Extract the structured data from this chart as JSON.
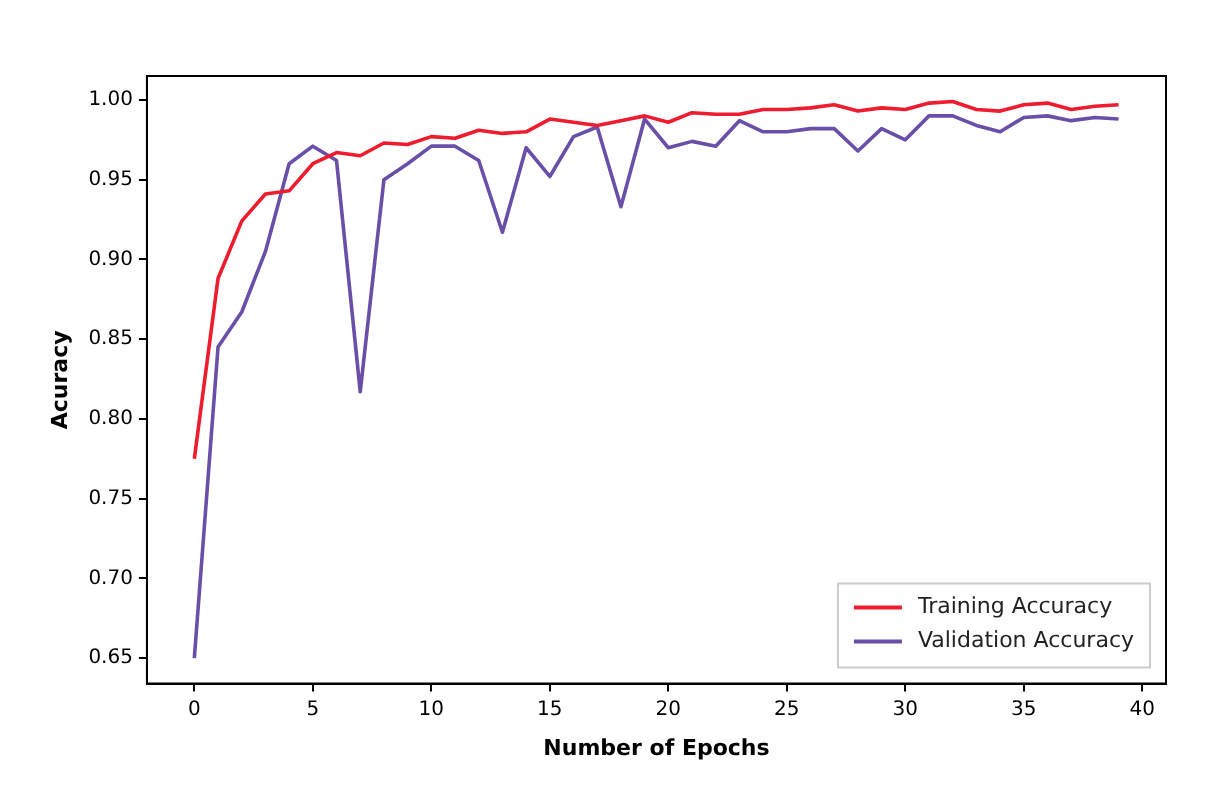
{
  "chart_data": {
    "type": "line",
    "xlabel": "Number of Epochs",
    "ylabel": "Acuracy",
    "x": [
      0,
      1,
      2,
      3,
      4,
      5,
      6,
      7,
      8,
      9,
      10,
      11,
      12,
      13,
      14,
      15,
      16,
      17,
      18,
      19,
      20,
      21,
      22,
      23,
      24,
      25,
      26,
      27,
      28,
      29,
      30,
      31,
      32,
      33,
      34,
      35,
      36,
      37,
      38,
      39
    ],
    "series": [
      {
        "name": "Training Accuracy",
        "color": "#ee1c2e",
        "values": [
          0.775,
          0.888,
          0.924,
          0.941,
          0.943,
          0.96,
          0.967,
          0.965,
          0.973,
          0.972,
          0.977,
          0.976,
          0.981,
          0.979,
          0.98,
          0.988,
          0.986,
          0.984,
          0.987,
          0.99,
          0.986,
          0.992,
          0.991,
          0.991,
          0.994,
          0.994,
          0.995,
          0.997,
          0.993,
          0.995,
          0.994,
          0.998,
          0.999,
          0.994,
          0.993,
          0.997,
          0.998,
          0.994,
          0.996,
          0.997
        ]
      },
      {
        "name": "Validation Accuracy",
        "color": "#6a4fa8",
        "values": [
          0.65,
          0.845,
          0.867,
          0.905,
          0.96,
          0.971,
          0.962,
          0.817,
          0.95,
          0.96,
          0.971,
          0.971,
          0.962,
          0.917,
          0.97,
          0.952,
          0.977,
          0.983,
          0.933,
          0.988,
          0.97,
          0.974,
          0.971,
          0.987,
          0.98,
          0.98,
          0.982,
          0.982,
          0.968,
          0.982,
          0.975,
          0.99,
          0.99,
          0.984,
          0.98,
          0.989,
          0.99,
          0.987,
          0.989,
          0.988
        ]
      }
    ],
    "xlim": [
      -2,
      41
    ],
    "xticks": [
      0,
      5,
      10,
      15,
      20,
      25,
      30,
      35,
      40
    ],
    "ylim": [
      0.634,
      1.015
    ],
    "yticks": [
      {
        "value": 0.65,
        "label": "0.65"
      },
      {
        "value": 0.7,
        "label": "0.70"
      },
      {
        "value": 0.75,
        "label": "0.75"
      },
      {
        "value": 0.8,
        "label": "0.80"
      },
      {
        "value": 0.85,
        "label": "0.85"
      },
      {
        "value": 0.9,
        "label": "0.90"
      },
      {
        "value": 0.95,
        "label": "0.95"
      },
      {
        "value": 1,
        "label": "1.00"
      }
    ],
    "grid": false,
    "legend": "bottom right",
    "marker": "none",
    "line_style": "solid"
  }
}
